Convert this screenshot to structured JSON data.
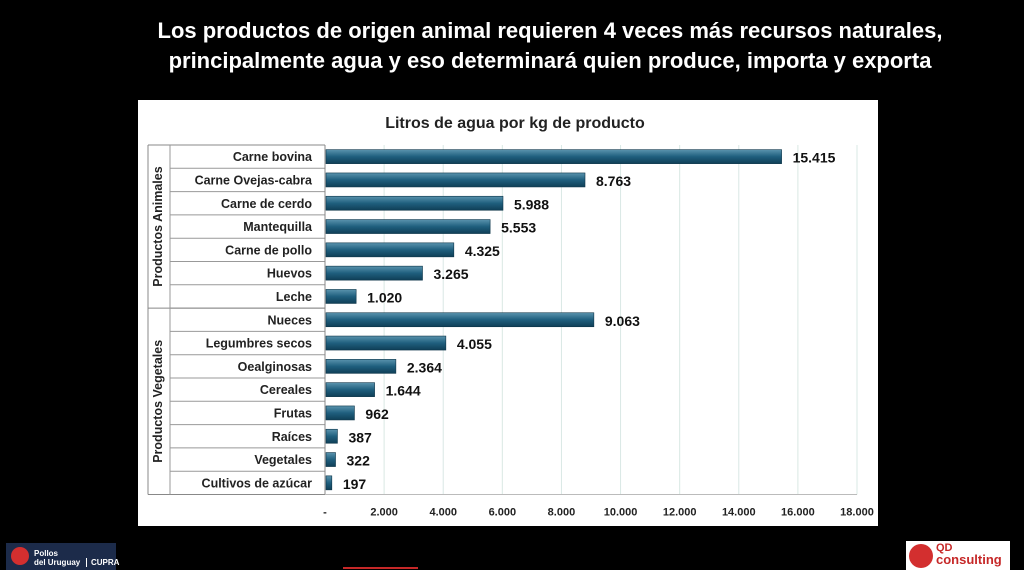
{
  "headline": {
    "line1": "Los productos de origen animal requieren 4 veces más recursos naturales,",
    "line2": "principalmente agua y eso determinará quien produce, importa y exporta"
  },
  "chart_data": {
    "type": "bar",
    "orientation": "horizontal",
    "title": "Litros de agua por kg de producto",
    "xlabel": "",
    "ylabel": "",
    "xlim": [
      0,
      18000
    ],
    "xticks": [
      0,
      2000,
      4000,
      6000,
      8000,
      10000,
      12000,
      14000,
      16000,
      18000
    ],
    "xtick_labels": [
      "-",
      "2.000",
      "4.000",
      "6.000",
      "8.000",
      "10.000",
      "12.000",
      "14.000",
      "16.000",
      "18.000"
    ],
    "grid": "vertical",
    "bar_color": "#1f5f7e",
    "groups": [
      {
        "name": "Productos Animales",
        "categories": [
          "Carne bovina",
          "Carne Ovejas-cabra",
          "Carne de cerdo",
          "Mantequilla",
          "Carne de pollo",
          "Huevos",
          "Leche"
        ],
        "values": [
          15415,
          8763,
          5988,
          5553,
          4325,
          3265,
          1020
        ],
        "labels": [
          "15.415",
          "8.763",
          "5.988",
          "5.553",
          "4.325",
          "3.265",
          "1.020"
        ]
      },
      {
        "name": "Productos Vegetales",
        "categories": [
          "Nueces",
          "Legumbres secos",
          "Oealginosas",
          "Cereales",
          "Frutas",
          "Raíces",
          "Vegetales",
          "Cultivos de azúcar"
        ],
        "values": [
          9063,
          4055,
          2364,
          1644,
          962,
          387,
          322,
          197
        ],
        "labels": [
          "9.063",
          "4.055",
          "2.364",
          "1.644",
          "962",
          "387",
          "322",
          "197"
        ]
      }
    ]
  },
  "logos": {
    "left": {
      "line1": "Pollos",
      "line2": "del Uruguay",
      "line3": "CUPRA"
    },
    "right": {
      "line1": "QD",
      "line2": "consulting"
    }
  }
}
